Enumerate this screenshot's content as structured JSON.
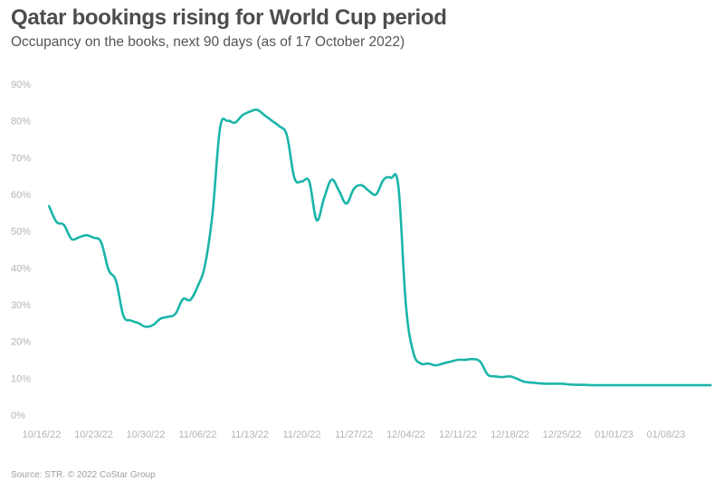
{
  "title": "Qatar bookings rising for World Cup period",
  "subtitle": "Occupancy on the books, next 90 days (as of 17 October 2022)",
  "source": "Source: STR. © 2022 CoStar Group",
  "colors": {
    "line": "#1ab5a9",
    "axis_text": "#b3b3b3",
    "title": "#4d4d4d"
  },
  "chart_data": {
    "type": "line",
    "title": "Qatar bookings rising for World Cup period",
    "subtitle": "Occupancy on the books, next 90 days (as of 17 October 2022)",
    "xlabel": "",
    "ylabel": "",
    "ylim": [
      0,
      90
    ],
    "y_ticks": [
      0,
      10,
      20,
      30,
      40,
      50,
      60,
      70,
      80,
      90
    ],
    "y_tick_labels": [
      "0%",
      "10%",
      "20%",
      "30%",
      "40%",
      "50%",
      "60%",
      "70%",
      "80%",
      "90%"
    ],
    "x_ticks": [
      "2022-10-16",
      "2022-10-23",
      "2022-10-30",
      "2022-11-06",
      "2022-11-13",
      "2022-11-20",
      "2022-11-27",
      "2022-12-04",
      "2022-12-11",
      "2022-12-18",
      "2022-12-25",
      "2023-01-01",
      "2023-01-08"
    ],
    "x_tick_labels": [
      "10/16/22",
      "10/23/22",
      "10/30/22",
      "11/06/22",
      "11/13/22",
      "11/20/22",
      "11/27/22",
      "12/04/22",
      "12/11/22",
      "12/18/22",
      "12/25/22",
      "01/01/23",
      "01/08/23"
    ],
    "grid": false,
    "series": [
      {
        "x": [
          "2022-10-17",
          "2022-10-18",
          "2022-10-19",
          "2022-10-20",
          "2022-10-21",
          "2022-10-22",
          "2022-10-23",
          "2022-10-24",
          "2022-10-25",
          "2022-10-26",
          "2022-10-27",
          "2022-10-28",
          "2022-10-29",
          "2022-10-30",
          "2022-10-31",
          "2022-11-01",
          "2022-11-02",
          "2022-11-03",
          "2022-11-04",
          "2022-11-05",
          "2022-11-06",
          "2022-11-07",
          "2022-11-08",
          "2022-11-09",
          "2022-11-10",
          "2022-11-11",
          "2022-11-12",
          "2022-11-13",
          "2022-11-14",
          "2022-11-15",
          "2022-11-16",
          "2022-11-17",
          "2022-11-18",
          "2022-11-19",
          "2022-11-20",
          "2022-11-21",
          "2022-11-22",
          "2022-11-23",
          "2022-11-24",
          "2022-11-25",
          "2022-11-26",
          "2022-11-27",
          "2022-11-28",
          "2022-11-29",
          "2022-11-30",
          "2022-12-01",
          "2022-12-02",
          "2022-12-03",
          "2022-12-04",
          "2022-12-05",
          "2022-12-06",
          "2022-12-07",
          "2022-12-08",
          "2022-12-09",
          "2022-12-10",
          "2022-12-11",
          "2022-12-12",
          "2022-12-13",
          "2022-12-14",
          "2022-12-15",
          "2022-12-16",
          "2022-12-17",
          "2022-12-18",
          "2022-12-19",
          "2022-12-20",
          "2022-12-21",
          "2022-12-22",
          "2022-12-23",
          "2022-12-24",
          "2022-12-25",
          "2022-12-26",
          "2022-12-27",
          "2022-12-28",
          "2022-12-29",
          "2022-12-30",
          "2022-12-31",
          "2023-01-01",
          "2023-01-02",
          "2023-01-03",
          "2023-01-04",
          "2023-01-05",
          "2023-01-06",
          "2023-01-07",
          "2023-01-08",
          "2023-01-09",
          "2023-01-10",
          "2023-01-11",
          "2023-01-12",
          "2023-01-13",
          "2023-01-14"
        ],
        "values": [
          56.8,
          52.5,
          51.7,
          47.9,
          48.3,
          48.9,
          48.2,
          47.0,
          39.5,
          36.5,
          27.0,
          25.7,
          25.0,
          24.0,
          24.5,
          26.2,
          26.7,
          27.5,
          31.5,
          31.3,
          35.0,
          41.0,
          55.0,
          78.0,
          80.0,
          79.5,
          81.5,
          82.5,
          83.0,
          81.5,
          80.0,
          78.5,
          76.0,
          64.5,
          63.5,
          63.5,
          53.0,
          59.0,
          64.0,
          61.0,
          57.5,
          61.5,
          62.5,
          61.0,
          60.0,
          64.0,
          64.5,
          62.0,
          30.0,
          17.0,
          14.0,
          14.0,
          13.5,
          14.0,
          14.5,
          15.0,
          15.0,
          15.2,
          14.5,
          11.0,
          10.5,
          10.3,
          10.5,
          9.8,
          9.0,
          8.8,
          8.6,
          8.5,
          8.5,
          8.5,
          8.3,
          8.2,
          8.2,
          8.1,
          8.1,
          8.1,
          8.1,
          8.1,
          8.1,
          8.1,
          8.1,
          8.1,
          8.1,
          8.1,
          8.1,
          8.1,
          8.1,
          8.1,
          8.1,
          8.1
        ]
      }
    ]
  }
}
